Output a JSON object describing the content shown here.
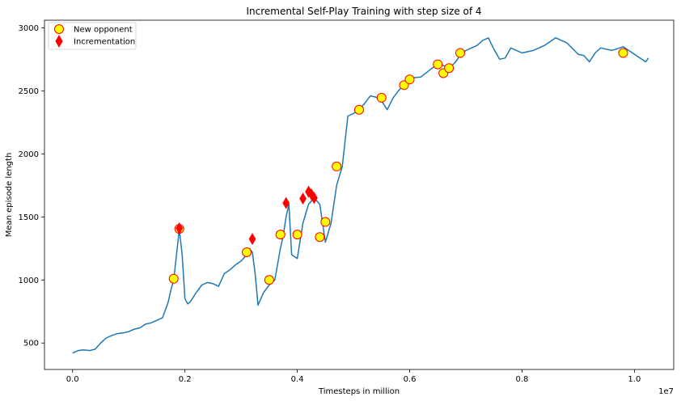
{
  "chart_data": {
    "type": "line",
    "title": "Incremental Self-Play Training with step size of 4",
    "xlabel": "Timesteps in million",
    "ylabel": "Mean episode length",
    "x_offset_label": "1e7",
    "xlim": [
      -0.05,
      1.07
    ],
    "ylim": [
      290,
      3060
    ],
    "x_ticks": [
      0.0,
      0.2,
      0.4,
      0.6,
      0.8,
      1.0
    ],
    "x_tick_labels": [
      "0.0",
      "0.2",
      "0.4",
      "0.6",
      "0.8",
      "1.0"
    ],
    "y_ticks": [
      500,
      1000,
      1500,
      2000,
      2500,
      3000
    ],
    "y_tick_labels": [
      "500",
      "1000",
      "1500",
      "2000",
      "2500",
      "3000"
    ],
    "grid": false,
    "legend_position": "upper-left",
    "series": [
      {
        "name": "",
        "kind": "line",
        "color": "#1f77b4",
        "x": [
          0.0,
          0.01,
          0.02,
          0.03,
          0.04,
          0.05,
          0.06,
          0.07,
          0.08,
          0.09,
          0.1,
          0.11,
          0.12,
          0.13,
          0.14,
          0.15,
          0.16,
          0.17,
          0.175,
          0.18,
          0.185,
          0.19,
          0.195,
          0.2,
          0.205,
          0.21,
          0.22,
          0.23,
          0.24,
          0.25,
          0.26,
          0.27,
          0.28,
          0.29,
          0.3,
          0.31,
          0.315,
          0.32,
          0.325,
          0.33,
          0.34,
          0.35,
          0.36,
          0.37,
          0.375,
          0.38,
          0.385,
          0.39,
          0.4,
          0.41,
          0.42,
          0.43,
          0.44,
          0.45,
          0.46,
          0.47,
          0.48,
          0.49,
          0.5,
          0.51,
          0.52,
          0.53,
          0.54,
          0.55,
          0.56,
          0.57,
          0.58,
          0.59,
          0.6,
          0.62,
          0.64,
          0.65,
          0.66,
          0.67,
          0.68,
          0.69,
          0.7,
          0.72,
          0.73,
          0.74,
          0.75,
          0.76,
          0.77,
          0.78,
          0.8,
          0.82,
          0.84,
          0.86,
          0.88,
          0.9,
          0.91,
          0.92,
          0.93,
          0.94,
          0.96,
          0.98,
          1.0,
          1.01,
          1.02,
          1.025
        ],
        "y": [
          420,
          440,
          445,
          440,
          450,
          500,
          540,
          560,
          575,
          580,
          590,
          610,
          620,
          650,
          660,
          680,
          700,
          820,
          920,
          1000,
          1200,
          1400,
          1200,
          850,
          810,
          830,
          900,
          960,
          980,
          970,
          950,
          1050,
          1080,
          1120,
          1150,
          1200,
          1250,
          1220,
          1050,
          800,
          900,
          960,
          1000,
          1250,
          1350,
          1500,
          1600,
          1200,
          1170,
          1450,
          1600,
          1650,
          1600,
          1300,
          1450,
          1750,
          1900,
          2300,
          2320,
          2350,
          2400,
          2460,
          2450,
          2420,
          2350,
          2440,
          2500,
          2550,
          2600,
          2610,
          2680,
          2710,
          2700,
          2680,
          2720,
          2780,
          2820,
          2860,
          2900,
          2920,
          2830,
          2750,
          2760,
          2840,
          2800,
          2820,
          2860,
          2920,
          2880,
          2790,
          2780,
          2730,
          2800,
          2840,
          2820,
          2850,
          2790,
          2760,
          2730,
          2760
        ]
      },
      {
        "name": "New opponent",
        "kind": "scatter",
        "marker": "circle",
        "face_color": "#ffff00",
        "edge_color": "#ff0000",
        "x": [
          0.18,
          0.19,
          0.31,
          0.35,
          0.37,
          0.4,
          0.44,
          0.45,
          0.47,
          0.51,
          0.55,
          0.59,
          0.6,
          0.65,
          0.66,
          0.67,
          0.69,
          0.98
        ],
        "y": [
          1010,
          1405,
          1220,
          1000,
          1360,
          1360,
          1340,
          1460,
          1900,
          2350,
          2445,
          2545,
          2590,
          2710,
          2640,
          2680,
          2800,
          2800
        ]
      },
      {
        "name": "Incrementation",
        "kind": "scatter",
        "marker": "diamond",
        "face_color": "#ff0000",
        "edge_color": "#ff0000",
        "x": [
          0.19,
          0.32,
          0.38,
          0.41,
          0.42,
          0.425,
          0.43
        ],
        "y": [
          1410,
          1325,
          1610,
          1645,
          1700,
          1680,
          1650
        ]
      }
    ]
  }
}
